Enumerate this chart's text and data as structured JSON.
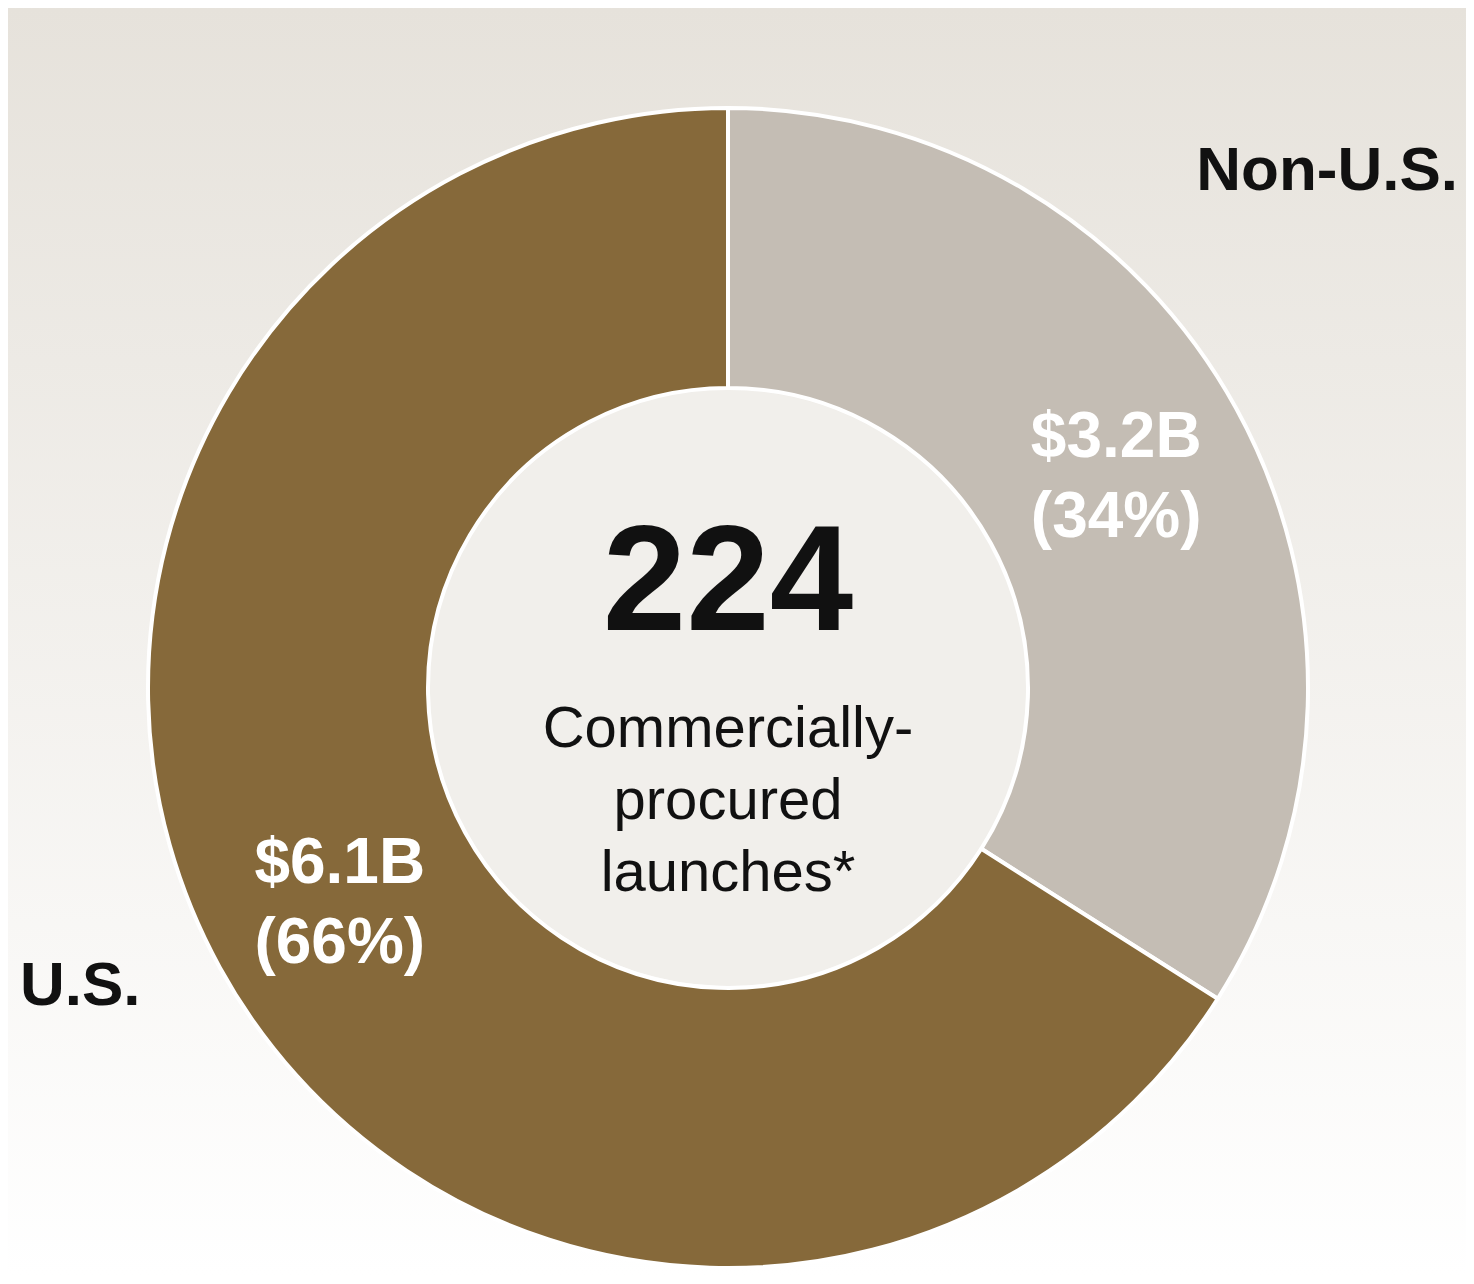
{
  "chart_data": {
    "type": "donut",
    "categories": [
      "Non-U.S.",
      "U.S."
    ],
    "values": [
      34,
      66
    ],
    "colors": [
      "#c4bdb4",
      "#86693a"
    ],
    "value_labels": [
      "$3.2B\n(34%)",
      "$6.1B\n(66%)"
    ],
    "annotations": [
      "224",
      "Commercially-\nprocured\nlaunches*"
    ],
    "legend": false
  }
}
